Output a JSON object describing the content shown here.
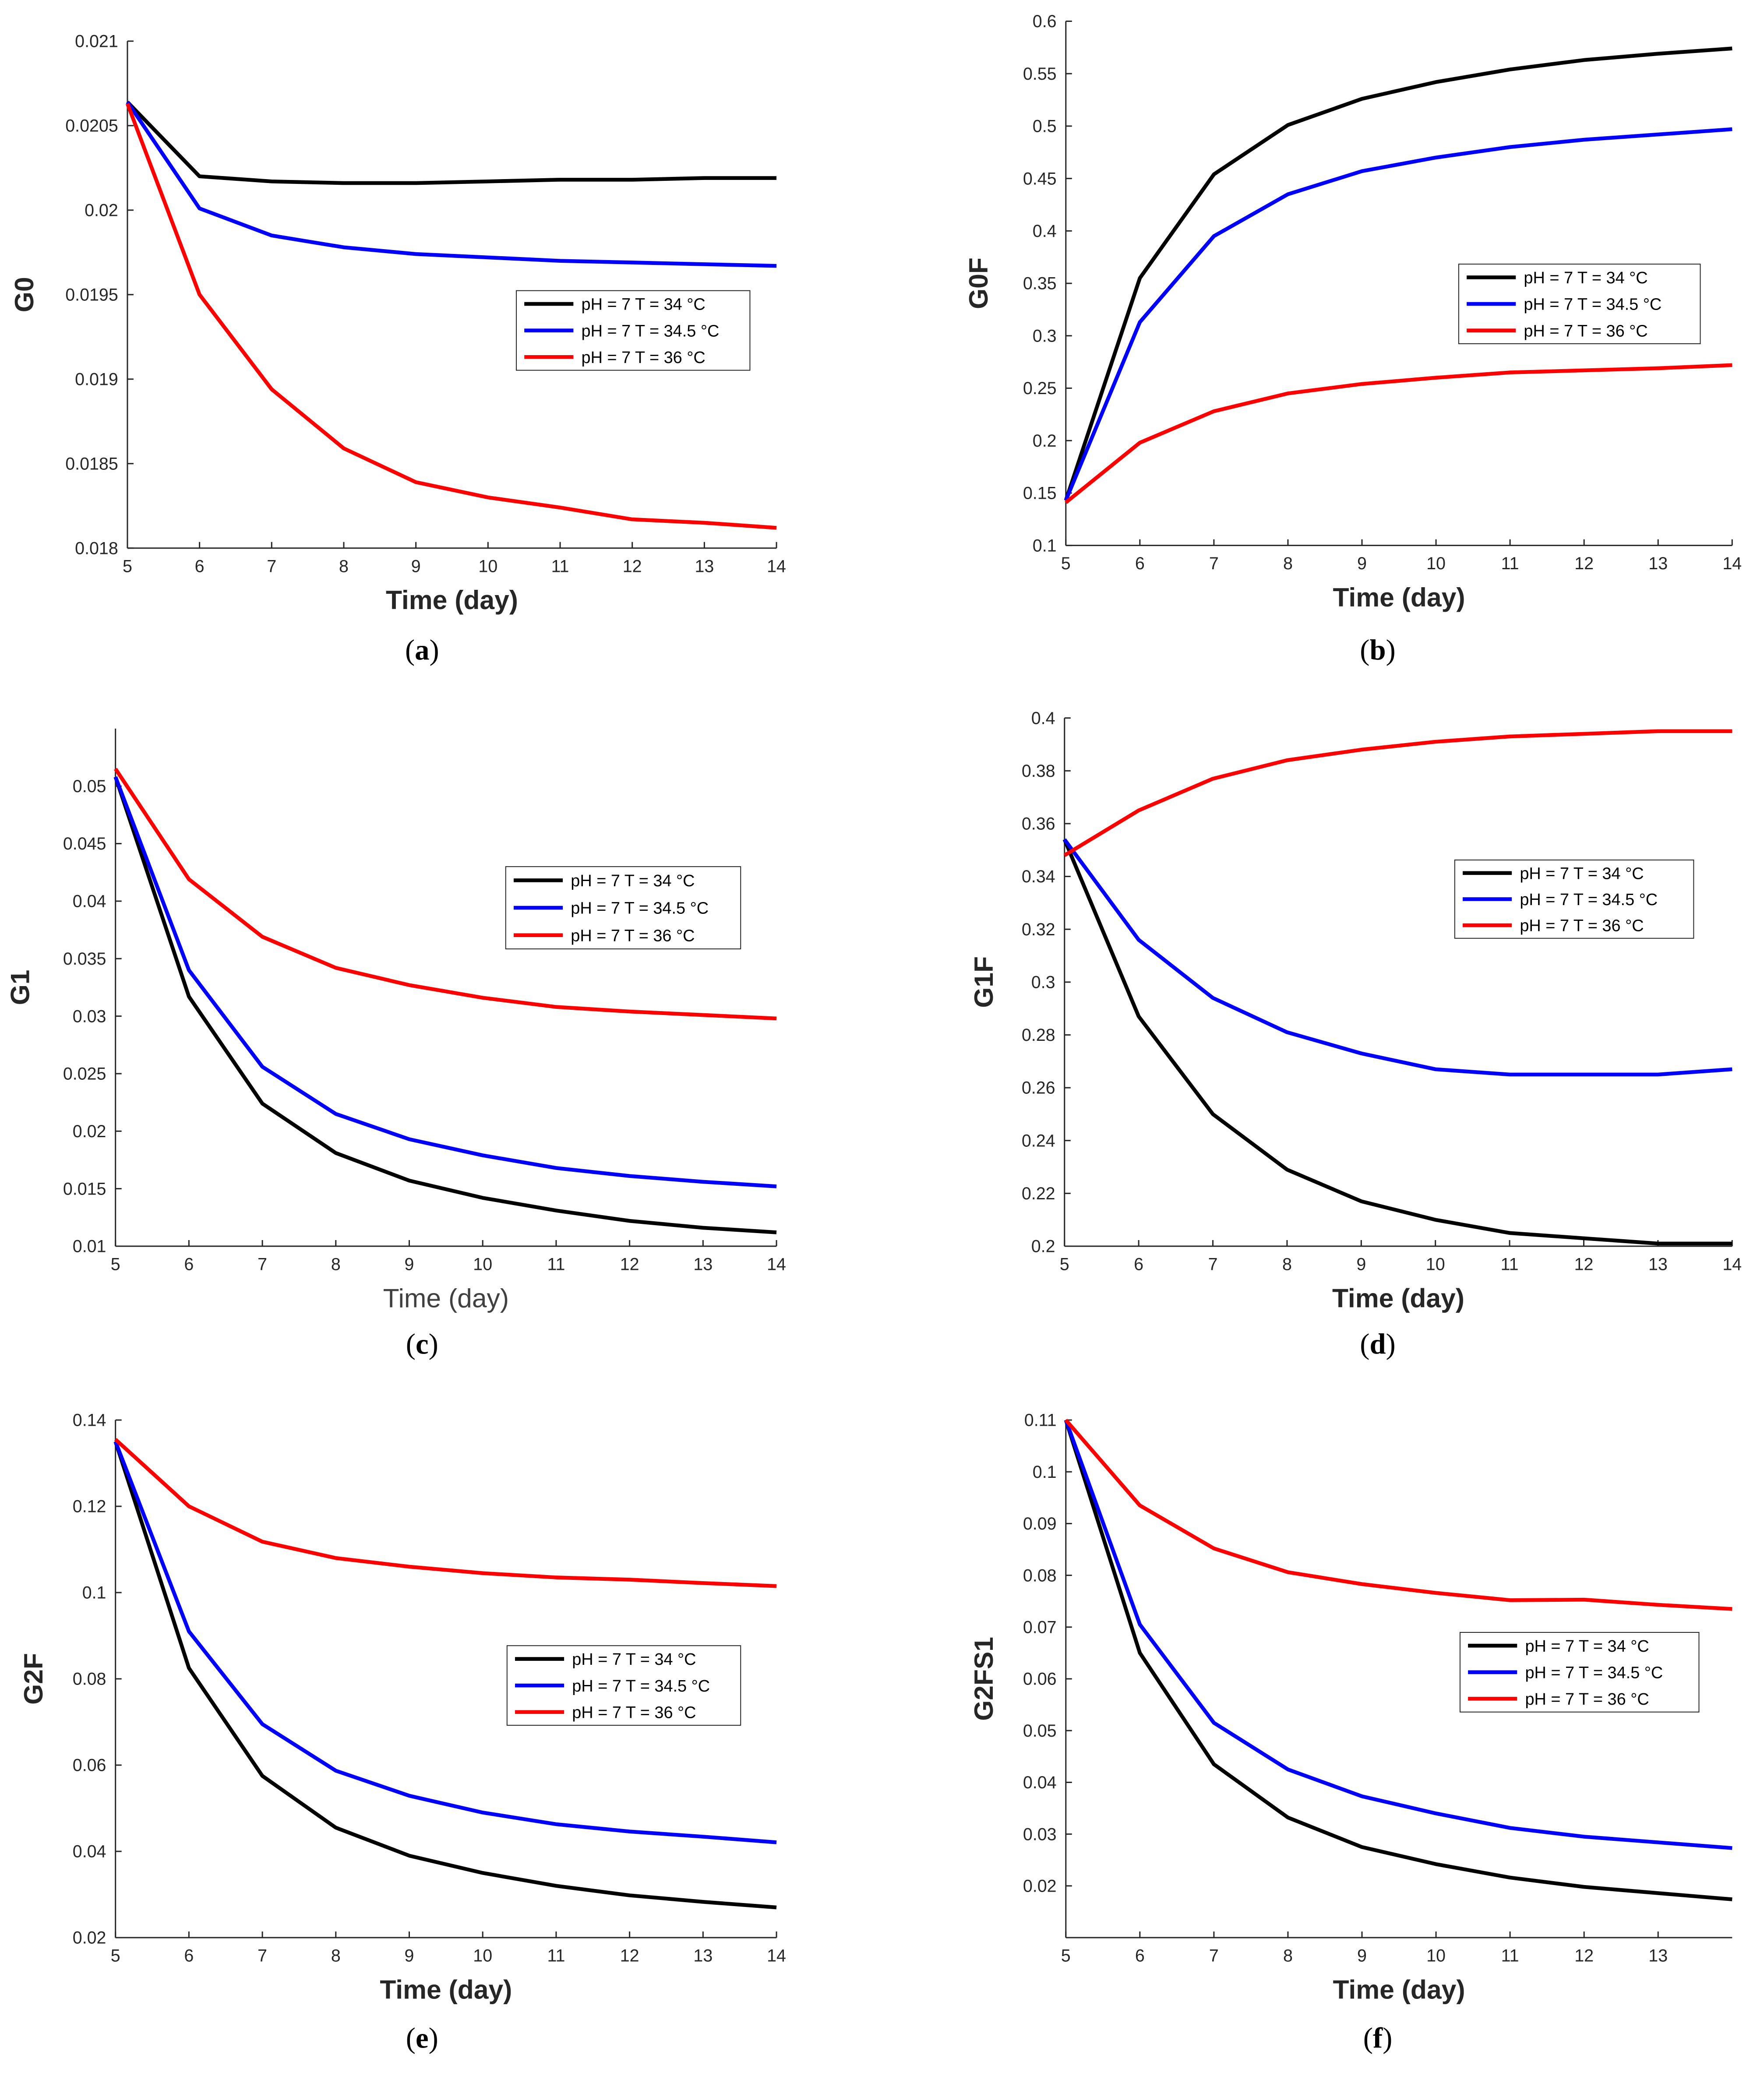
{
  "figure": {
    "panel_labels": [
      "a",
      "b",
      "c",
      "d",
      "e",
      "f"
    ]
  },
  "series_colors": {
    "pH = 7 T = 34 °C": "#000000",
    "pH = 7 T = 34.5 °C": "#0000ff",
    "pH = 7 T = 36 °C": "#ff0000"
  },
  "chart_data": [
    {
      "type": "line",
      "panel": "a",
      "title": "",
      "xlabel": "Time (day)",
      "ylabel": "G0",
      "xlim": [
        5,
        14
      ],
      "ylim": [
        0.018,
        0.021
      ],
      "xticks": [
        5,
        6,
        7,
        8,
        9,
        10,
        11,
        12,
        13,
        14
      ],
      "yticks": [
        0.018,
        0.0185,
        0.019,
        0.0195,
        0.02,
        0.0205,
        0.021
      ],
      "legend_position": "center-right",
      "x": [
        5,
        6,
        7,
        8,
        9,
        10,
        11,
        12,
        13,
        14
      ],
      "series": [
        {
          "name": "pH = 7 T = 34 °C",
          "color": "#000000",
          "values": [
            0.02064,
            0.0202,
            0.02017,
            0.02016,
            0.02016,
            0.02017,
            0.02018,
            0.02018,
            0.02019,
            0.02019
          ]
        },
        {
          "name": "pH = 7 T = 34.5 °C",
          "color": "#0000ff",
          "values": [
            0.02064,
            0.02001,
            0.01985,
            0.01978,
            0.01974,
            0.01972,
            0.0197,
            0.01969,
            0.01968,
            0.01967
          ]
        },
        {
          "name": "pH = 7 T = 36 °C",
          "color": "#ff0000",
          "values": [
            0.02063,
            0.0195,
            0.01894,
            0.01859,
            0.01839,
            0.0183,
            0.01824,
            0.01817,
            0.01815,
            0.01812
          ]
        }
      ]
    },
    {
      "type": "line",
      "panel": "b",
      "title": "",
      "xlabel": "Time (day)",
      "ylabel": "G0F",
      "xlim": [
        5,
        14
      ],
      "ylim": [
        0.1,
        0.6
      ],
      "xticks": [
        5,
        6,
        7,
        8,
        9,
        10,
        11,
        12,
        13,
        14
      ],
      "yticks": [
        0.1,
        0.15,
        0.2,
        0.25,
        0.3,
        0.35,
        0.4,
        0.45,
        0.5,
        0.55,
        0.6
      ],
      "legend_position": "center-right",
      "x": [
        5,
        6,
        7,
        8,
        9,
        10,
        11,
        12,
        13,
        14
      ],
      "series": [
        {
          "name": "pH = 7 T = 34 °C",
          "color": "#000000",
          "values": [
            0.143,
            0.355,
            0.454,
            0.501,
            0.526,
            0.542,
            0.554,
            0.563,
            0.569,
            0.574
          ]
        },
        {
          "name": "pH = 7 T = 34.5 °C",
          "color": "#0000ff",
          "values": [
            0.143,
            0.313,
            0.395,
            0.435,
            0.457,
            0.47,
            0.48,
            0.487,
            0.492,
            0.497
          ]
        },
        {
          "name": "pH = 7 T = 36 °C",
          "color": "#ff0000",
          "values": [
            0.141,
            0.198,
            0.228,
            0.245,
            0.254,
            0.26,
            0.265,
            0.267,
            0.269,
            0.272
          ]
        }
      ]
    },
    {
      "type": "line",
      "panel": "c",
      "title": "",
      "xlabel": "Time (day)",
      "ylabel": "G1",
      "xlim": [
        5,
        14
      ],
      "ylim": [
        0.01,
        0.055
      ],
      "xticks": [
        5,
        6,
        7,
        8,
        9,
        10,
        11,
        12,
        13,
        14
      ],
      "yticks": [
        0.01,
        0.015,
        0.02,
        0.025,
        0.03,
        0.035,
        0.04,
        0.045,
        0.05
      ],
      "legend_position": "top-right",
      "x": [
        5,
        6,
        7,
        8,
        9,
        10,
        11,
        12,
        13,
        14
      ],
      "series": [
        {
          "name": "pH = 7 T = 34 °C",
          "color": "#000000",
          "values": [
            0.0508,
            0.0317,
            0.0224,
            0.0181,
            0.0157,
            0.0142,
            0.0131,
            0.0122,
            0.0116,
            0.0112
          ]
        },
        {
          "name": "pH = 7 T = 34.5 °C",
          "color": "#0000ff",
          "values": [
            0.0508,
            0.034,
            0.0256,
            0.0215,
            0.0193,
            0.0179,
            0.0168,
            0.0161,
            0.0156,
            0.0152
          ]
        },
        {
          "name": "pH = 7 T = 36 °C",
          "color": "#ff0000",
          "values": [
            0.0515,
            0.0419,
            0.0369,
            0.0342,
            0.0327,
            0.0316,
            0.0308,
            0.0304,
            0.0301,
            0.0298
          ]
        }
      ]
    },
    {
      "type": "line",
      "panel": "d",
      "title": "",
      "xlabel": "Time (day)",
      "ylabel": "G1F",
      "xlim": [
        5,
        14
      ],
      "ylim": [
        0.2,
        0.4
      ],
      "xticks": [
        5,
        6,
        7,
        8,
        9,
        10,
        11,
        12,
        13,
        14
      ],
      "yticks": [
        0.2,
        0.22,
        0.24,
        0.26,
        0.28,
        0.3,
        0.32,
        0.34,
        0.36,
        0.38,
        0.4
      ],
      "legend_position": "center-right",
      "x": [
        5,
        6,
        7,
        8,
        9,
        10,
        11,
        12,
        13,
        14
      ],
      "series": [
        {
          "name": "pH = 7 T = 34 °C",
          "color": "#000000",
          "values": [
            0.354,
            0.287,
            0.25,
            0.229,
            0.217,
            0.21,
            0.205,
            0.203,
            0.201,
            0.201
          ]
        },
        {
          "name": "pH = 7 T = 34.5 °C",
          "color": "#0000ff",
          "values": [
            0.354,
            0.316,
            0.294,
            0.281,
            0.273,
            0.267,
            0.265,
            0.265,
            0.265,
            0.267
          ]
        },
        {
          "name": "pH = 7 T = 36 °C",
          "color": "#ff0000",
          "values": [
            0.348,
            0.365,
            0.377,
            0.384,
            0.388,
            0.391,
            0.393,
            0.394,
            0.395,
            0.395
          ]
        }
      ]
    },
    {
      "type": "line",
      "panel": "e",
      "title": "",
      "xlabel": "Time (day)",
      "ylabel": "G2F",
      "xlim": [
        5,
        14
      ],
      "ylim": [
        0.02,
        0.14
      ],
      "xticks": [
        5,
        6,
        7,
        8,
        9,
        10,
        11,
        12,
        13,
        14
      ],
      "yticks": [
        0.02,
        0.04,
        0.06,
        0.08,
        0.1,
        0.12,
        0.14
      ],
      "legend_position": "center-right",
      "x": [
        5,
        6,
        7,
        8,
        9,
        10,
        11,
        12,
        13,
        14
      ],
      "series": [
        {
          "name": "pH = 7 T = 34 °C",
          "color": "#000000",
          "values": [
            0.135,
            0.0825,
            0.0575,
            0.0455,
            0.039,
            0.035,
            0.032,
            0.0298,
            0.0283,
            0.027
          ]
        },
        {
          "name": "pH = 7 T = 34.5 °C",
          "color": "#0000ff",
          "values": [
            0.135,
            0.091,
            0.0695,
            0.0587,
            0.0529,
            0.049,
            0.0463,
            0.0446,
            0.0434,
            0.0421
          ]
        },
        {
          "name": "pH = 7 T = 36 °C",
          "color": "#ff0000",
          "values": [
            0.1355,
            0.12,
            0.1118,
            0.108,
            0.106,
            0.1045,
            0.1035,
            0.103,
            0.1022,
            0.1015
          ]
        }
      ]
    },
    {
      "type": "line",
      "panel": "f",
      "title": "",
      "xlabel": "Time (day)",
      "ylabel": "G2FS1",
      "xlim": [
        5,
        14
      ],
      "ylim": [
        0.01,
        0.11
      ],
      "xticks": [
        5,
        6,
        7,
        8,
        9,
        10,
        11,
        12,
        13
      ],
      "yticks": [
        0.02,
        0.03,
        0.04,
        0.05,
        0.06,
        0.07,
        0.08,
        0.09,
        0.1,
        0.11
      ],
      "legend_position": "center-right",
      "x": [
        5,
        6,
        7,
        8,
        9,
        10,
        11,
        12,
        13,
        14
      ],
      "series": [
        {
          "name": "pH = 7 T = 34 °C",
          "color": "#000000",
          "values": [
            0.11,
            0.065,
            0.0435,
            0.0332,
            0.0275,
            0.0242,
            0.0216,
            0.0198,
            0.0186,
            0.0174
          ]
        },
        {
          "name": "pH = 7 T = 34.5 °C",
          "color": "#0000ff",
          "values": [
            0.11,
            0.0705,
            0.0515,
            0.0425,
            0.0373,
            0.034,
            0.0312,
            0.0295,
            0.0284,
            0.0273
          ]
        },
        {
          "name": "pH = 7 T = 36 °C",
          "color": "#ff0000",
          "values": [
            0.11,
            0.0935,
            0.0852,
            0.0806,
            0.0783,
            0.0766,
            0.0752,
            0.0753,
            0.0743,
            0.0735
          ]
        }
      ]
    }
  ]
}
